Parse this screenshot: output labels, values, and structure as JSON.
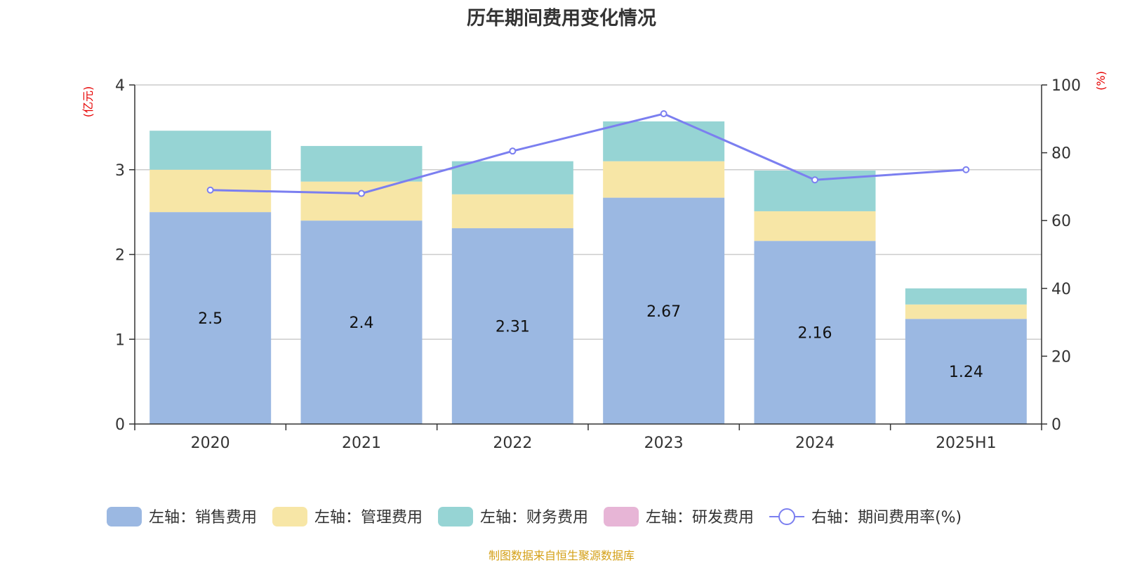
{
  "title": "历年期间费用变化情况",
  "source_note": "制图数据来自恒生聚源数据库",
  "left_unit": "(亿元)",
  "right_unit": "(%)",
  "chart_data": {
    "type": "bar",
    "stacked": true,
    "categories": [
      "2020",
      "2021",
      "2022",
      "2023",
      "2024",
      "2025H1"
    ],
    "ylim_left": [
      0,
      4
    ],
    "yticks_left": [
      "0",
      "1",
      "2",
      "3",
      "4"
    ],
    "ylim_right": [
      0,
      100
    ],
    "yticks_right": [
      "0",
      "20",
      "40",
      "60",
      "80",
      "100"
    ],
    "grid": true,
    "legend_position": "bottom",
    "series": [
      {
        "name": "左轴：销售费用",
        "axis": "left",
        "color": "#9bb8e2",
        "values": [
          2.5,
          2.4,
          2.31,
          2.67,
          2.16,
          1.24
        ],
        "labels": [
          "2.5",
          "2.4",
          "2.31",
          "2.67",
          "2.16",
          "1.24"
        ]
      },
      {
        "name": "左轴：管理费用",
        "axis": "left",
        "color": "#f7e6a6",
        "values": [
          0.5,
          0.46,
          0.4,
          0.43,
          0.35,
          0.17
        ]
      },
      {
        "name": "左轴：财务费用",
        "axis": "left",
        "color": "#96d4d4",
        "values": [
          0.46,
          0.42,
          0.39,
          0.47,
          0.48,
          0.19
        ]
      },
      {
        "name": "左轴：研发费用",
        "axis": "left",
        "color": "#e7b5d6",
        "values": [
          0,
          0,
          0,
          0,
          0,
          0
        ]
      },
      {
        "name": "右轴：期间费用率(%)",
        "axis": "right",
        "type": "line",
        "color": "#7b7ff0",
        "values": [
          69,
          68,
          80.5,
          91.5,
          72,
          75
        ]
      }
    ]
  }
}
